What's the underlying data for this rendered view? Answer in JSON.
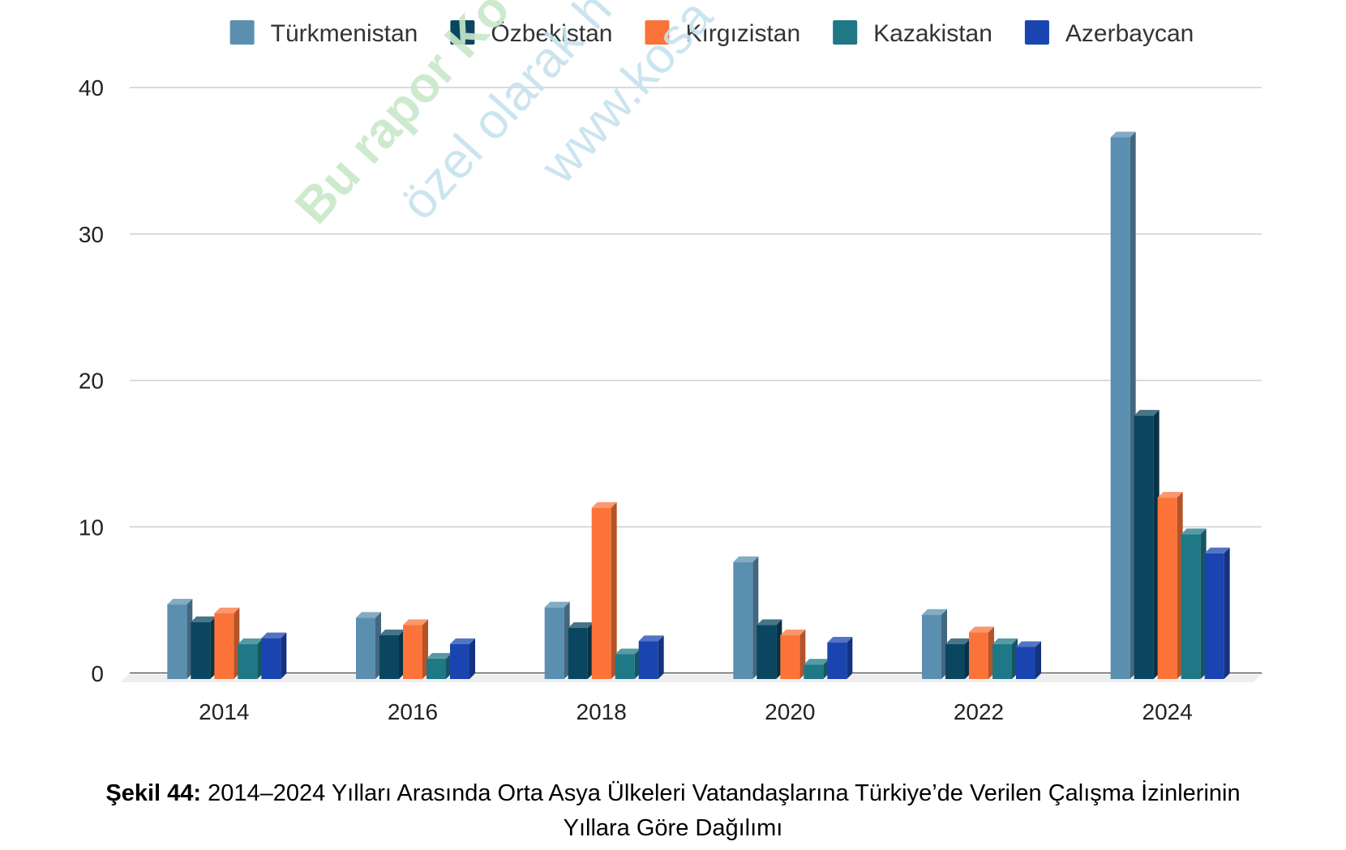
{
  "chart_data": {
    "type": "bar",
    "categories": [
      "2014",
      "2016",
      "2018",
      "2020",
      "2022",
      "2024"
    ],
    "series": [
      {
        "name": "Türkmenistan",
        "color": "#5b8fb0",
        "values": [
          4.7,
          3.8,
          4.5,
          7.6,
          4.0,
          36.6
        ]
      },
      {
        "name": "Özbekistan",
        "color": "#0b4660",
        "values": [
          3.5,
          2.6,
          3.1,
          3.3,
          2.0,
          17.6
        ]
      },
      {
        "name": "Kırgızistan",
        "color": "#fb7339",
        "values": [
          4.1,
          3.3,
          11.3,
          2.6,
          2.8,
          12.0
        ]
      },
      {
        "name": "Kazakistan",
        "color": "#1e7885",
        "values": [
          2.0,
          1.0,
          1.3,
          0.6,
          2.0,
          9.5
        ]
      },
      {
        "name": "Azerbaycan",
        "color": "#1a45b0",
        "values": [
          2.4,
          2.0,
          2.2,
          2.1,
          1.8,
          8.2
        ]
      }
    ],
    "ylim": [
      0,
      40
    ],
    "yticks": [
      "0",
      "10",
      "20",
      "30",
      "40"
    ],
    "grid": true,
    "legend": "top"
  },
  "watermark": {
    "line1": "Bu rapor Ko",
    "line2": "özel olarak h",
    "line3": "www.kosa"
  },
  "caption": {
    "number": "Şekil 44:",
    "line1": "2014–2024 Yılları Arasında Orta Asya Ülkeleri Vatandaşlarına Türkiye’de Verilen Çalışma İzinlerinin",
    "line2": "Yıllara Göre Dağılımı"
  }
}
